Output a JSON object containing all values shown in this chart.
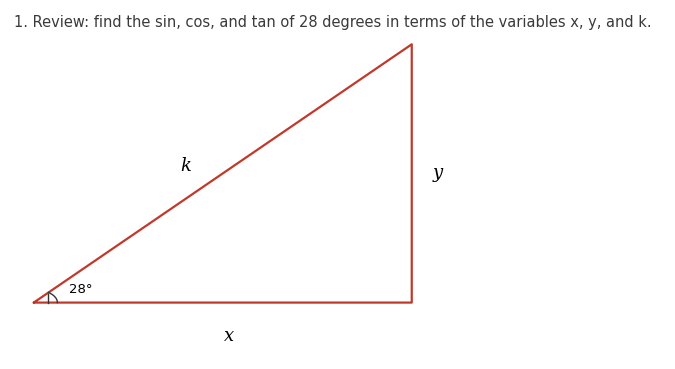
{
  "title": "1. Review: find the sin, cos, and tan of 28 degrees in terms of the variables x, y, and k.",
  "title_fontsize": 10.5,
  "title_color": "#3a3a3a",
  "triangle_color": "#c0392b",
  "triangle_linewidth": 1.6,
  "angle_label": "28°",
  "label_k": "k",
  "label_x": "x",
  "label_y": "y",
  "label_fontsize": 13,
  "background_color": "#ffffff",
  "A": [
    0.05,
    0.18
  ],
  "B": [
    0.61,
    0.18
  ],
  "C": [
    0.61,
    0.88
  ]
}
